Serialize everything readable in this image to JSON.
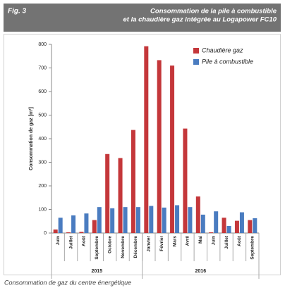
{
  "figure": {
    "label": "Fig. 3",
    "title": [
      "Consommation de la pile à combustible",
      "et la chaudière gaz intégrée au Logapower FC10"
    ],
    "caption": "Consommation de gaz du centre énergétique"
  },
  "chart_data": {
    "type": "bar",
    "y_label": "Consommation de gaz [m³]",
    "categories": [
      "Juin",
      "Juillet",
      "Août",
      "Septembre",
      "Octobre",
      "Novembre",
      "Décembre",
      "Janvier",
      "Février",
      "Mars",
      "Avril",
      "Mai",
      "Juin",
      "Juillet",
      "Août",
      "Septembre"
    ],
    "groups": [
      {
        "label": "2015",
        "count": 7
      },
      {
        "label": "2016",
        "count": 9
      }
    ],
    "series": [
      {
        "name": "Chaudière gaz",
        "color": "#c4373a",
        "values": [
          15,
          3,
          5,
          55,
          335,
          318,
          437,
          792,
          733,
          710,
          443,
          155,
          3,
          65,
          52,
          55
        ]
      },
      {
        "name": "Pile à combustible",
        "color": "#4a7cc0",
        "values": [
          65,
          75,
          83,
          110,
          105,
          110,
          110,
          115,
          108,
          118,
          110,
          78,
          92,
          30,
          88,
          63
        ]
      }
    ],
    "ylim": [
      0,
      800
    ],
    "yticks": [
      0,
      100,
      200,
      300,
      400,
      500,
      600,
      700,
      800
    ],
    "legend": "upper-right"
  }
}
